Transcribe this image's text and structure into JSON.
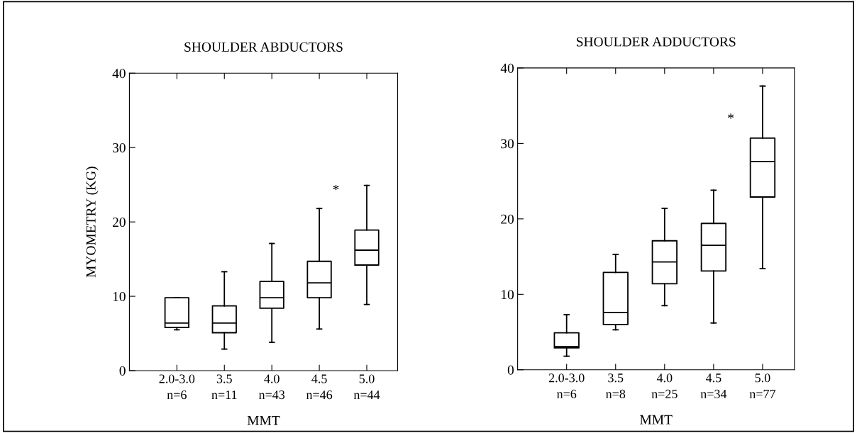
{
  "chart_data": [
    {
      "type": "box",
      "title": "SHOULDER ABDUCTORS",
      "xlabel": "MMT",
      "ylabel": "MYOMETRY (KG)",
      "categories": [
        "2.0-3.0\nn=6",
        "3.5\nn=11",
        "4.0\nn=43",
        "4.5\nn=46",
        "5.0\nn=44"
      ],
      "ylim": [
        0,
        40
      ],
      "yticks": [
        0,
        10,
        20,
        30,
        40
      ],
      "grid": false,
      "boxes": [
        {
          "low": 5.5,
          "q1": 5.8,
          "median": 6.4,
          "q3": 9.8,
          "high": 9.8
        },
        {
          "low": 2.9,
          "q1": 5.1,
          "median": 6.4,
          "q3": 8.7,
          "high": 13.3
        },
        {
          "low": 3.8,
          "q1": 8.4,
          "median": 9.8,
          "q3": 12.0,
          "high": 17.1
        },
        {
          "low": 5.6,
          "q1": 9.8,
          "median": 11.8,
          "q3": 14.7,
          "high": 21.8
        },
        {
          "low": 8.9,
          "q1": 14.2,
          "median": 16.2,
          "q3": 18.9,
          "high": 24.9
        }
      ],
      "annotations": [
        "*"
      ]
    },
    {
      "type": "box",
      "title": "SHOULDER ADDUCTORS",
      "xlabel": "MMT",
      "categories": [
        "2.0-3.0\nn=6",
        "3.5\nn=8",
        "4.0\nn=25",
        "4.5\nn=34",
        "5.0\nn=77"
      ],
      "ylim": [
        0,
        40
      ],
      "yticks": [
        0,
        10,
        20,
        30,
        40
      ],
      "grid": false,
      "boxes": [
        {
          "low": 1.8,
          "q1": 2.9,
          "median": 3.1,
          "q3": 4.9,
          "high": 7.3
        },
        {
          "low": 5.3,
          "q1": 6.0,
          "median": 7.6,
          "q3": 12.9,
          "high": 15.3
        },
        {
          "low": 8.5,
          "q1": 11.4,
          "median": 14.3,
          "q3": 17.1,
          "high": 21.4
        },
        {
          "low": 6.2,
          "q1": 13.1,
          "median": 16.5,
          "q3": 19.4,
          "high": 23.8
        },
        {
          "low": 13.4,
          "q1": 22.9,
          "median": 27.6,
          "q3": 30.7,
          "high": 37.6
        }
      ],
      "annotations": [
        "*"
      ]
    }
  ]
}
